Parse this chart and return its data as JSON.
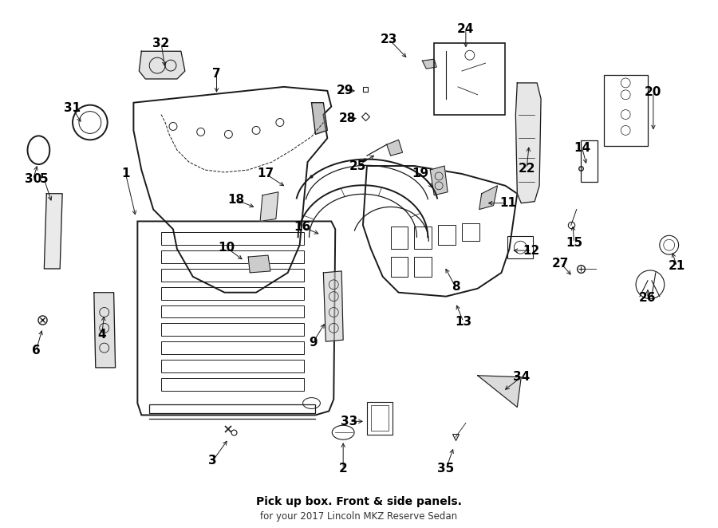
{
  "title": "Pick up box. Front & side panels.",
  "subtitle": "for your 2017 Lincoln MKZ Reserve Sedan",
  "bg_color": "#ffffff",
  "line_color": "#1a1a1a",
  "text_color": "#000000",
  "label_fontsize": 11,
  "title_fontsize": 10,
  "label_data": {
    "1": [
      1.55,
      4.45,
      1.68,
      3.9
    ],
    "2": [
      4.3,
      0.72,
      4.3,
      1.08
    ],
    "3": [
      2.65,
      0.82,
      2.85,
      1.1
    ],
    "4": [
      1.25,
      2.42,
      1.28,
      2.68
    ],
    "5": [
      0.52,
      4.38,
      0.62,
      4.08
    ],
    "6": [
      0.42,
      2.22,
      0.5,
      2.5
    ],
    "7": [
      2.7,
      5.72,
      2.7,
      5.45
    ],
    "8": [
      5.72,
      3.02,
      5.58,
      3.28
    ],
    "9": [
      3.92,
      2.32,
      4.08,
      2.58
    ],
    "10": [
      2.82,
      3.52,
      3.05,
      3.35
    ],
    "11": [
      6.38,
      4.08,
      6.1,
      4.08
    ],
    "12": [
      6.68,
      3.48,
      6.42,
      3.48
    ],
    "13": [
      5.82,
      2.58,
      5.72,
      2.82
    ],
    "14": [
      7.32,
      4.78,
      7.38,
      4.55
    ],
    "15": [
      7.22,
      3.58,
      7.2,
      3.82
    ],
    "16": [
      3.78,
      3.78,
      4.02,
      3.68
    ],
    "17": [
      3.32,
      4.45,
      3.58,
      4.28
    ],
    "18": [
      2.95,
      4.12,
      3.2,
      4.02
    ],
    "19": [
      5.28,
      4.45,
      5.45,
      4.25
    ],
    "20": [
      8.22,
      5.48,
      8.22,
      4.98
    ],
    "21": [
      8.52,
      3.28,
      8.45,
      3.48
    ],
    "22": [
      6.62,
      4.52,
      6.65,
      4.82
    ],
    "23": [
      4.88,
      6.15,
      5.12,
      5.9
    ],
    "24": [
      5.85,
      6.28,
      5.85,
      6.02
    ],
    "25": [
      4.48,
      4.55,
      4.72,
      4.7
    ],
    "26": [
      8.15,
      2.88,
      8.15,
      3.02
    ],
    "27": [
      7.05,
      3.32,
      7.2,
      3.15
    ],
    "28": [
      4.35,
      5.15,
      4.5,
      5.15
    ],
    "29": [
      4.32,
      5.5,
      4.48,
      5.5
    ],
    "30": [
      0.38,
      4.38,
      0.44,
      4.58
    ],
    "31": [
      0.88,
      5.28,
      1.0,
      5.08
    ],
    "32": [
      2.0,
      6.1,
      2.05,
      5.78
    ],
    "33": [
      4.38,
      1.32,
      4.58,
      1.32
    ],
    "34": [
      6.55,
      1.88,
      6.32,
      1.7
    ],
    "35": [
      5.6,
      0.72,
      5.7,
      1.0
    ]
  }
}
